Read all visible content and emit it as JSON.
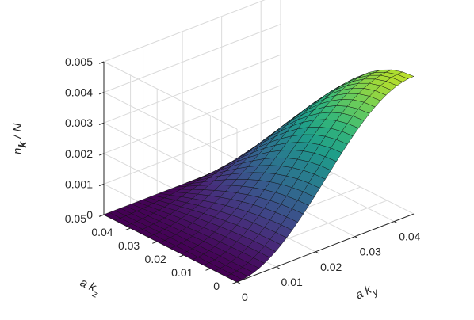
{
  "chart_data": {
    "type": "surface",
    "title": "",
    "xlabel": {
      "base": "a k",
      "sub": "y"
    },
    "ylabel": {
      "base": "a k",
      "sub": "z"
    },
    "zlabel": {
      "base": "n",
      "sub": "k",
      "suffix": "/ N"
    },
    "x_ticks": [
      "0",
      "0.01",
      "0.02",
      "0.03",
      "0.04"
    ],
    "y_ticks": [
      "0",
      "0.01",
      "0.02",
      "0.03",
      "0.04",
      "0.05"
    ],
    "z_ticks": [
      "0",
      "0.001",
      "0.002",
      "0.003",
      "0.004",
      "0.005"
    ],
    "xlim": [
      0,
      0.045
    ],
    "ylim": [
      0,
      0.05
    ],
    "zlim": [
      0,
      0.005
    ],
    "grid": true,
    "colormap": "viridis",
    "surface": {
      "x_range": [
        0,
        0.045
      ],
      "z_range": [
        0,
        0.05
      ],
      "peak_value": 0.0045,
      "peak_location": {
        "ak_y": 0.045,
        "ak_z": 0.0
      },
      "description_values": [
        {
          "ak_y": 0.0,
          "ak_z": 0.05,
          "n": 0.0
        },
        {
          "ak_y": 0.0,
          "ak_z": 0.0,
          "n": 0.0
        },
        {
          "ak_y": 0.045,
          "ak_z": 0.05,
          "n": 0.0
        },
        {
          "ak_y": 0.045,
          "ak_z": 0.0,
          "n": 0.0045
        }
      ]
    }
  }
}
